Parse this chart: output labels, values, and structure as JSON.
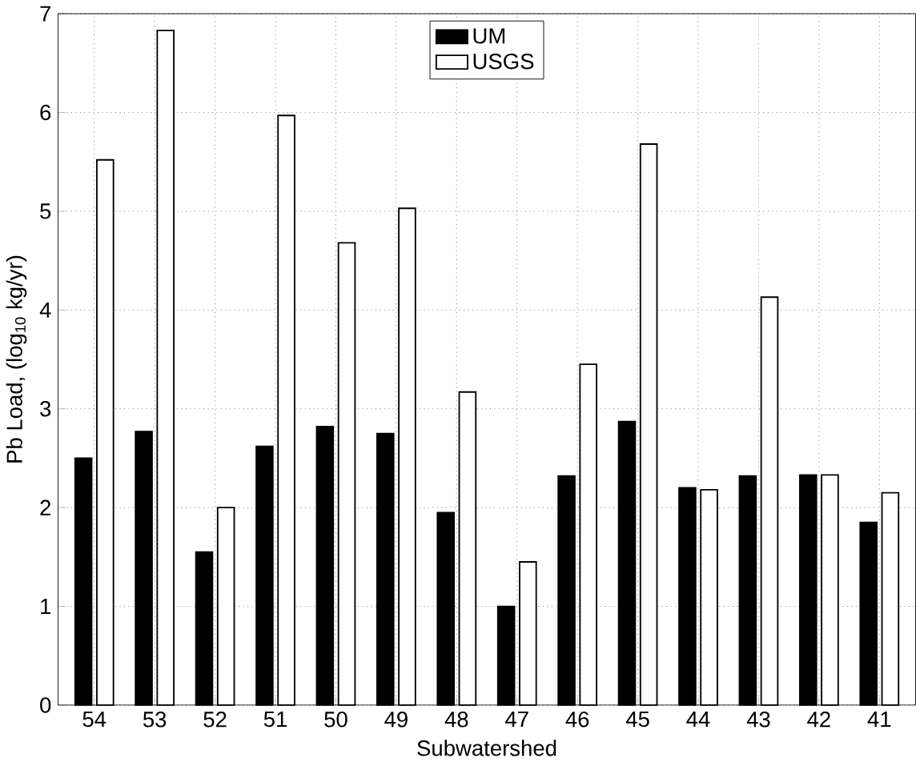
{
  "chart_data": {
    "type": "bar",
    "xlabel": "Subwatershed",
    "ylabel": "Pb Load, (log$_{10}$ kg/yr)",
    "categories": [
      "54",
      "53",
      "52",
      "51",
      "50",
      "49",
      "48",
      "47",
      "46",
      "45",
      "44",
      "43",
      "42",
      "41"
    ],
    "series": [
      {
        "name": "UM",
        "color": "#000000",
        "values": [
          2.5,
          2.77,
          1.55,
          2.62,
          2.82,
          2.75,
          1.95,
          1.0,
          2.32,
          2.87,
          2.2,
          2.32,
          2.33,
          1.85
        ]
      },
      {
        "name": "USGS",
        "color": "#ffffff",
        "values": [
          5.52,
          6.83,
          2.0,
          5.97,
          4.68,
          5.03,
          3.17,
          1.45,
          3.45,
          5.68,
          2.18,
          4.13,
          2.33,
          2.15
        ]
      }
    ],
    "ylim": [
      0,
      7
    ],
    "yticks": [
      0,
      1,
      2,
      3,
      4,
      5,
      6,
      7
    ],
    "grid": true,
    "legend": "top"
  }
}
